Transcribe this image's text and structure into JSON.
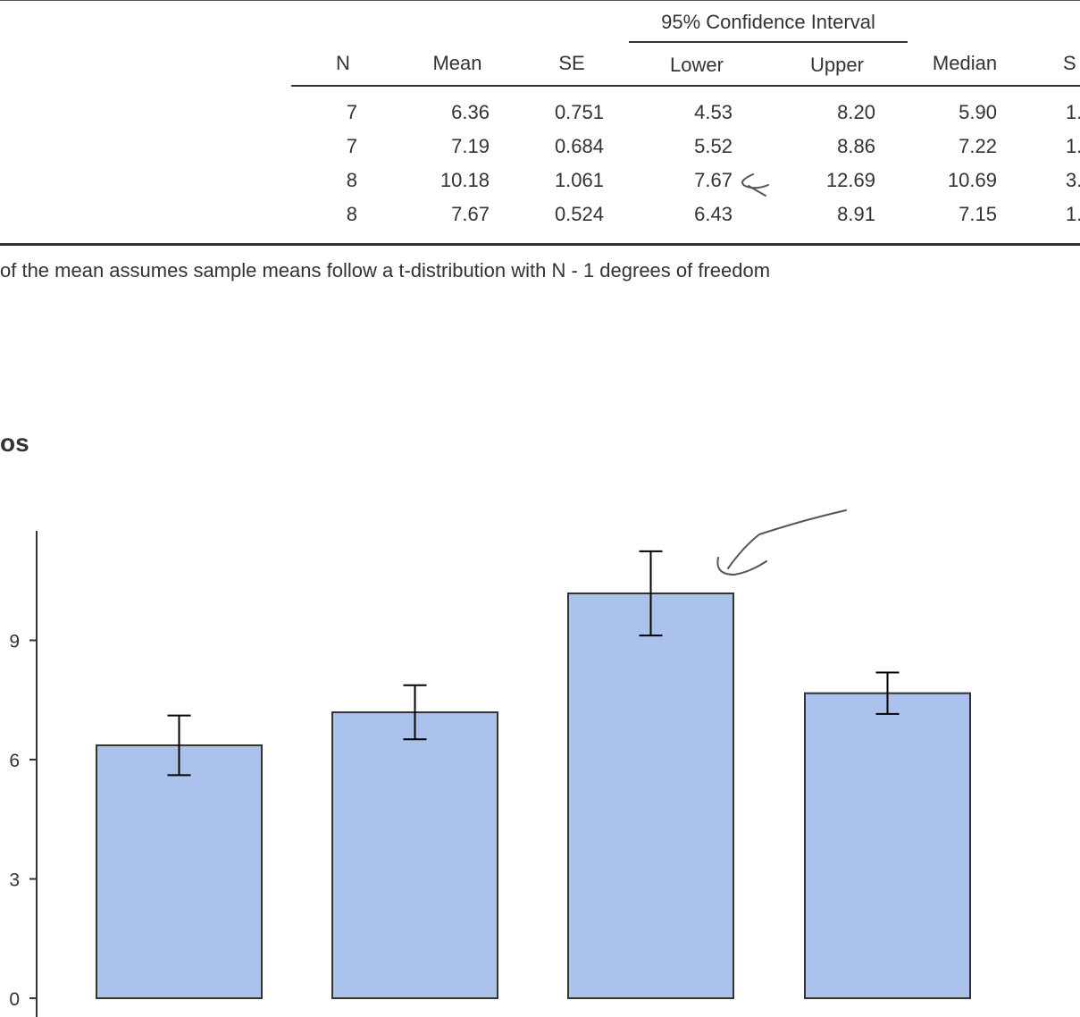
{
  "table": {
    "ci_header": "95% Confidence Interval",
    "columns": [
      "N",
      "Mean",
      "SE",
      "Lower",
      "Upper",
      "Median",
      "S"
    ],
    "rows": [
      [
        "7",
        "6.36",
        "0.751",
        "4.53",
        "8.20",
        "5.90",
        "1."
      ],
      [
        "7",
        "7.19",
        "0.684",
        "5.52",
        "8.86",
        "7.22",
        "1."
      ],
      [
        "8",
        "10.18",
        "1.061",
        "7.67",
        "12.69",
        "10.69",
        "3."
      ],
      [
        "8",
        "7.67",
        "0.524",
        "6.43",
        "8.91",
        "7.15",
        "1."
      ]
    ],
    "footnote": "of the mean assumes sample means follow a t-distribution with N - 1 degrees of freedom"
  },
  "plot": {
    "title": "os"
  },
  "chart_data": {
    "type": "bar",
    "title": "",
    "xlabel": "",
    "ylabel": "",
    "categories": [
      "",
      "",
      "",
      ""
    ],
    "values": [
      6.36,
      7.19,
      10.18,
      7.67
    ],
    "error_low": [
      5.61,
      6.51,
      9.12,
      7.15
    ],
    "error_high": [
      7.11,
      7.87,
      11.24,
      8.19
    ],
    "ylim": [
      0,
      12
    ],
    "yticks": [
      0,
      3,
      6,
      9
    ],
    "grid": false,
    "colors": {
      "bar_fill": "#abc2ec",
      "bar_stroke": "#333333",
      "error_bar": "#000000"
    }
  },
  "annotations": {
    "pen_color": "#555555"
  }
}
